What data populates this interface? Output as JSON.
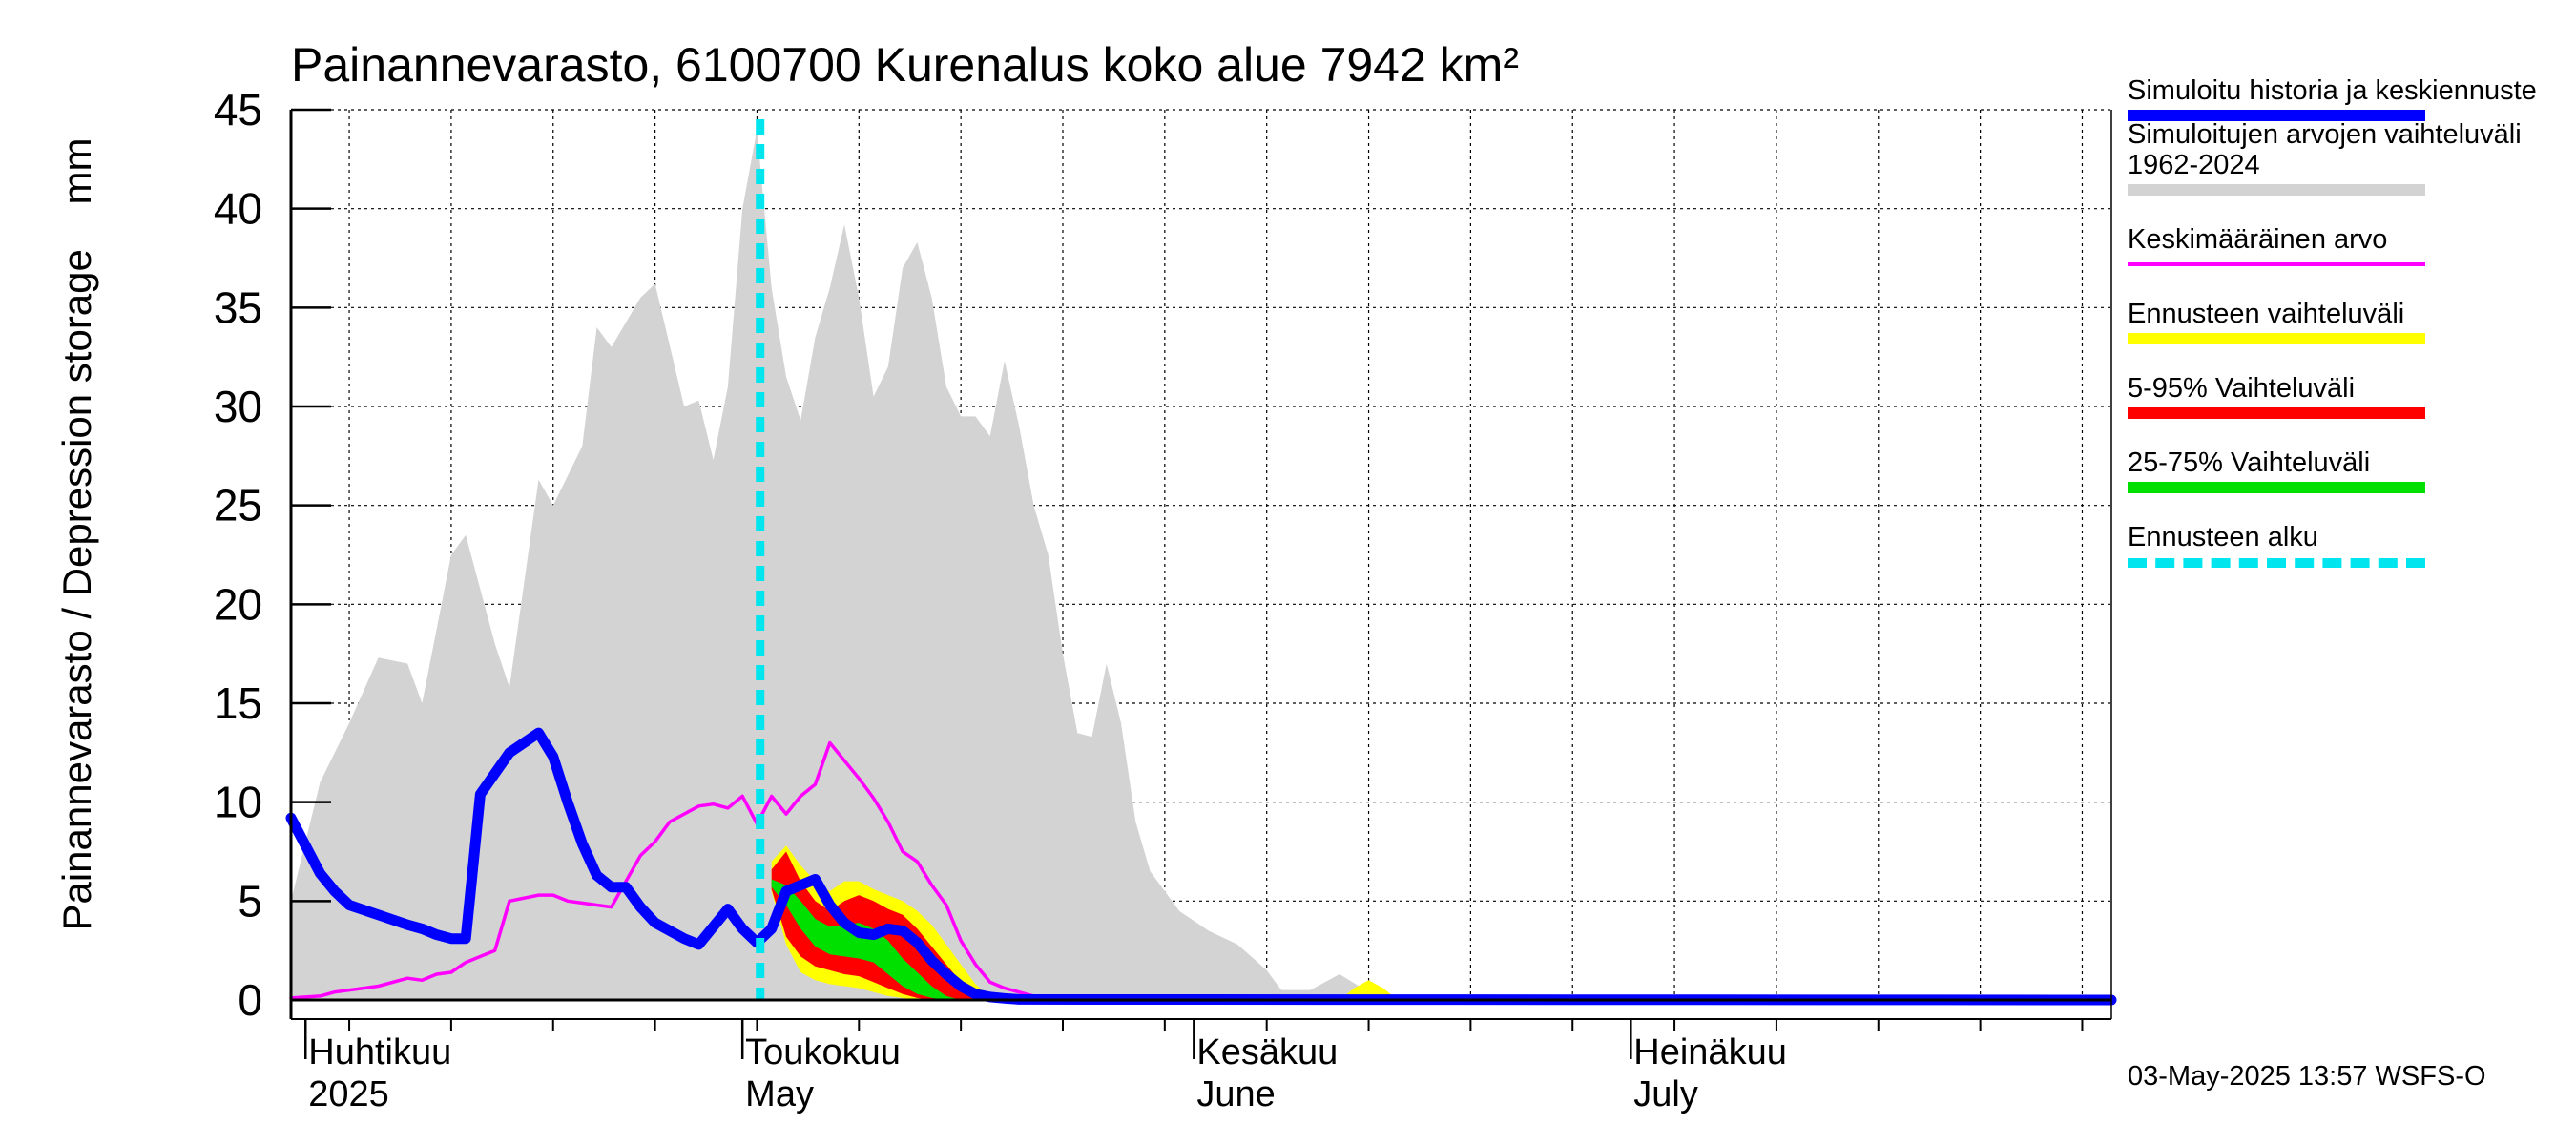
{
  "chart_data": {
    "type": "area",
    "title": "Painannevarasto, 6100700 Kurenalus koko alue 7942 km²",
    "ylabel": "Painannevarasto / Depression storage    mm",
    "ylim": [
      0,
      45
    ],
    "yticks": [
      0,
      5,
      10,
      15,
      20,
      25,
      30,
      35,
      40,
      45
    ],
    "grid": true,
    "legend_placement": "right",
    "xlim": [
      "2025-03-31",
      "2025-08-03"
    ],
    "x_month_labels": [
      {
        "date": "2025-04-01",
        "fi": "Huhtikuu",
        "en": "2025"
      },
      {
        "date": "2025-05-01",
        "fi": "Toukokuu",
        "en": "May"
      },
      {
        "date": "2025-06-01",
        "fi": "Kesäkuu",
        "en": "June"
      },
      {
        "date": "2025-07-01",
        "fi": "Heinäkuu",
        "en": "July"
      }
    ],
    "forecast_start": "2025-05-03",
    "series": [
      {
        "name": "Simuloitujen arvojen vaihteluväli 1962-2024",
        "kind": "band",
        "color": "#d3d3d3",
        "x": [
          "2025-03-31",
          "2025-04-02",
          "2025-04-04",
          "2025-04-06",
          "2025-04-08",
          "2025-04-09",
          "2025-04-11",
          "2025-04-12",
          "2025-04-14",
          "2025-04-15",
          "2025-04-17",
          "2025-04-18",
          "2025-04-20",
          "2025-04-21",
          "2025-04-22",
          "2025-04-24",
          "2025-04-25",
          "2025-04-27",
          "2025-04-28",
          "2025-04-29",
          "2025-04-30",
          "2025-05-01",
          "2025-05-02",
          "2025-05-03",
          "2025-05-04",
          "2025-05-05",
          "2025-05-06",
          "2025-05-07",
          "2025-05-08",
          "2025-05-09",
          "2025-05-10",
          "2025-05-11",
          "2025-05-12",
          "2025-05-13",
          "2025-05-14",
          "2025-05-15",
          "2025-05-16",
          "2025-05-17",
          "2025-05-18",
          "2025-05-19",
          "2025-05-20",
          "2025-05-21",
          "2025-05-22",
          "2025-05-23",
          "2025-05-24",
          "2025-05-25",
          "2025-05-26",
          "2025-05-27",
          "2025-05-28",
          "2025-05-29",
          "2025-05-31",
          "2025-06-02",
          "2025-06-04",
          "2025-06-06",
          "2025-06-07",
          "2025-06-09",
          "2025-06-11",
          "2025-06-13",
          "2025-06-15",
          "2025-08-03"
        ],
        "lower": [
          0,
          0,
          0,
          0,
          0,
          0,
          0,
          0,
          0,
          0,
          0,
          0,
          0,
          0,
          0,
          0,
          0,
          0,
          0,
          0,
          0,
          0,
          0,
          0,
          0,
          0,
          0,
          0,
          0,
          0,
          0,
          0,
          0,
          0,
          0,
          0,
          0,
          0,
          0,
          0,
          0,
          0,
          0,
          0,
          0,
          0,
          0,
          0,
          0,
          0,
          0,
          0,
          0,
          0,
          0,
          0,
          0,
          0,
          0,
          0
        ],
        "upper": [
          5,
          11,
          14,
          17.3,
          17,
          15,
          22.5,
          23.5,
          18,
          15.8,
          26.3,
          25,
          28,
          34,
          33,
          35.5,
          36.2,
          30,
          30.3,
          27.3,
          31,
          40,
          44,
          36,
          31.5,
          29.3,
          33.5,
          36,
          39.2,
          35.5,
          30.5,
          32,
          37,
          38.3,
          35.5,
          31,
          29.5,
          29.5,
          28.5,
          32.3,
          29,
          25,
          22.5,
          17.5,
          13.5,
          13.3,
          17,
          14,
          9,
          6.5,
          4.5,
          3.5,
          2.8,
          1.5,
          0.5,
          0.5,
          1.3,
          0.4,
          0,
          0
        ]
      },
      {
        "name": "Ennusteen vaihteluväli",
        "kind": "band",
        "color": "#ffff00",
        "x": [
          "2025-05-03",
          "2025-05-04",
          "2025-05-05",
          "2025-05-06",
          "2025-05-07",
          "2025-05-08",
          "2025-05-09",
          "2025-05-10",
          "2025-05-11",
          "2025-05-12",
          "2025-05-13",
          "2025-05-14",
          "2025-05-15",
          "2025-05-16",
          "2025-05-17",
          "2025-05-18",
          "2025-05-19",
          "2025-06-11",
          "2025-06-12",
          "2025-06-13",
          "2025-06-14",
          "2025-06-15",
          "2025-08-03"
        ],
        "lower": [
          5.5,
          2.8,
          1.4,
          1,
          0.8,
          0.7,
          0.6,
          0.4,
          0.2,
          0.1,
          0,
          0,
          0,
          0,
          0,
          0,
          0,
          0,
          0,
          0,
          0,
          0,
          0
        ],
        "upper": [
          7,
          7.8,
          6.8,
          6,
          5.5,
          6,
          6,
          5.6,
          5.3,
          5,
          4.5,
          3.8,
          2.8,
          1.8,
          0.8,
          0.2,
          0,
          0,
          0.6,
          1,
          0.6,
          0,
          0
        ]
      },
      {
        "name": "5-95% Vaihteluväli",
        "kind": "band",
        "color": "#ff0000",
        "x": [
          "2025-05-03",
          "2025-05-04",
          "2025-05-05",
          "2025-05-06",
          "2025-05-07",
          "2025-05-08",
          "2025-05-09",
          "2025-05-10",
          "2025-05-11",
          "2025-05-12",
          "2025-05-13",
          "2025-05-14",
          "2025-05-15",
          "2025-05-16",
          "2025-05-17",
          "2025-05-18",
          "2025-08-03"
        ],
        "lower": [
          5.6,
          3.2,
          2.2,
          1.7,
          1.5,
          1.3,
          1.2,
          0.9,
          0.6,
          0.3,
          0.1,
          0,
          0,
          0,
          0,
          0,
          0
        ],
        "upper": [
          6.6,
          7.5,
          6,
          5,
          4.5,
          5,
          5.3,
          5,
          4.6,
          4.3,
          3.6,
          2.7,
          1.8,
          0.9,
          0.3,
          0,
          0
        ]
      },
      {
        "name": "25-75% Vaihteluväli",
        "kind": "band",
        "color": "#00e000",
        "x": [
          "2025-05-03",
          "2025-05-04",
          "2025-05-05",
          "2025-05-06",
          "2025-05-07",
          "2025-05-08",
          "2025-05-09",
          "2025-05-10",
          "2025-05-11",
          "2025-05-12",
          "2025-05-13",
          "2025-05-14",
          "2025-05-15",
          "2025-05-16",
          "2025-08-03"
        ],
        "lower": [
          5.7,
          4.8,
          3.6,
          2.7,
          2.3,
          2.2,
          2.1,
          1.9,
          1.3,
          0.7,
          0.3,
          0.1,
          0,
          0,
          0
        ],
        "upper": [
          6.1,
          5.8,
          5,
          4.1,
          3.7,
          3.8,
          3.9,
          3.6,
          3,
          2.1,
          1.4,
          0.7,
          0.2,
          0,
          0
        ]
      },
      {
        "name": "Keskimääräinen arvo",
        "kind": "line",
        "color": "#ff00ff",
        "x": [
          "2025-03-31",
          "2025-04-02",
          "2025-04-03",
          "2025-04-04",
          "2025-04-06",
          "2025-04-08",
          "2025-04-09",
          "2025-04-10",
          "2025-04-11",
          "2025-04-12",
          "2025-04-14",
          "2025-04-15",
          "2025-04-17",
          "2025-04-18",
          "2025-04-19",
          "2025-04-20",
          "2025-04-21",
          "2025-04-22",
          "2025-04-24",
          "2025-04-25",
          "2025-04-26",
          "2025-04-28",
          "2025-04-29",
          "2025-04-30",
          "2025-05-01",
          "2025-05-02",
          "2025-05-03",
          "2025-05-04",
          "2025-05-05",
          "2025-05-06",
          "2025-05-07",
          "2025-05-08",
          "2025-05-09",
          "2025-05-10",
          "2025-05-11",
          "2025-05-12",
          "2025-05-13",
          "2025-05-14",
          "2025-05-15",
          "2025-05-16",
          "2025-05-17",
          "2025-05-18",
          "2025-05-19",
          "2025-05-21",
          "2025-05-23",
          "2025-08-03"
        ],
        "y": [
          0.1,
          0.2,
          0.4,
          0.5,
          0.7,
          1.1,
          1,
          1.3,
          1.4,
          1.9,
          2.5,
          5,
          5.3,
          5.3,
          5,
          4.9,
          4.8,
          4.7,
          7.3,
          8,
          9,
          9.8,
          9.9,
          9.7,
          10.3,
          8.9,
          10.3,
          9.4,
          10.3,
          10.9,
          13,
          12.1,
          11.2,
          10.2,
          9,
          7.5,
          7,
          5.8,
          4.8,
          3,
          1.8,
          0.9,
          0.6,
          0.2,
          0.05,
          0
        ]
      },
      {
        "name": "Simuloitu historia ja keskiennuste",
        "kind": "line",
        "color": "#0000ff",
        "x": [
          "2025-03-31",
          "2025-04-01",
          "2025-04-02",
          "2025-04-03",
          "2025-04-04",
          "2025-04-06",
          "2025-04-08",
          "2025-04-09",
          "2025-04-10",
          "2025-04-11",
          "2025-04-12",
          "2025-04-13",
          "2025-04-15",
          "2025-04-17",
          "2025-04-18",
          "2025-04-19",
          "2025-04-20",
          "2025-04-21",
          "2025-04-22",
          "2025-04-23",
          "2025-04-24",
          "2025-04-25",
          "2025-04-27",
          "2025-04-28",
          "2025-04-30",
          "2025-05-01",
          "2025-05-02",
          "2025-05-03",
          "2025-05-04",
          "2025-05-05",
          "2025-05-06",
          "2025-05-07",
          "2025-05-08",
          "2025-05-09",
          "2025-05-10",
          "2025-05-11",
          "2025-05-12",
          "2025-05-13",
          "2025-05-14",
          "2025-05-15",
          "2025-05-16",
          "2025-05-17",
          "2025-05-18",
          "2025-05-19",
          "2025-05-20",
          "2025-08-03"
        ],
        "y": [
          9.2,
          7.8,
          6.4,
          5.5,
          4.8,
          4.3,
          3.8,
          3.6,
          3.3,
          3.1,
          3.1,
          10.4,
          12.5,
          13.5,
          12.3,
          10,
          7.9,
          6.3,
          5.7,
          5.7,
          4.7,
          3.9,
          3.1,
          2.8,
          4.6,
          3.6,
          2.9,
          3.6,
          5.5,
          5.8,
          6.1,
          4.8,
          3.9,
          3.4,
          3.3,
          3.6,
          3.5,
          2.9,
          2,
          1.3,
          0.7,
          0.3,
          0.15,
          0.08,
          0.03,
          0
        ]
      }
    ]
  },
  "legend": [
    {
      "label": "Simuloitu historia ja keskiennuste",
      "color": "#0000ff",
      "style": "solid"
    },
    {
      "label": "Simuloitujen arvojen vaihteluväli 1962-2024",
      "color": "#d3d3d3",
      "style": "solid"
    },
    {
      "label": "Keskimääräinen arvo",
      "color": "#ff00ff",
      "style": "thin"
    },
    {
      "label": "Ennusteen vaihteluväli",
      "color": "#ffff00",
      "style": "solid"
    },
    {
      "label": "5-95% Vaihteluväli",
      "color": "#ff0000",
      "style": "solid"
    },
    {
      "label": "25-75% Vaihteluväli",
      "color": "#00e000",
      "style": "solid"
    },
    {
      "label": "Ennusteen alku",
      "color": "#00e5ee",
      "style": "dashed"
    }
  ],
  "footer": "03-May-2025 13:57 WSFS-O"
}
